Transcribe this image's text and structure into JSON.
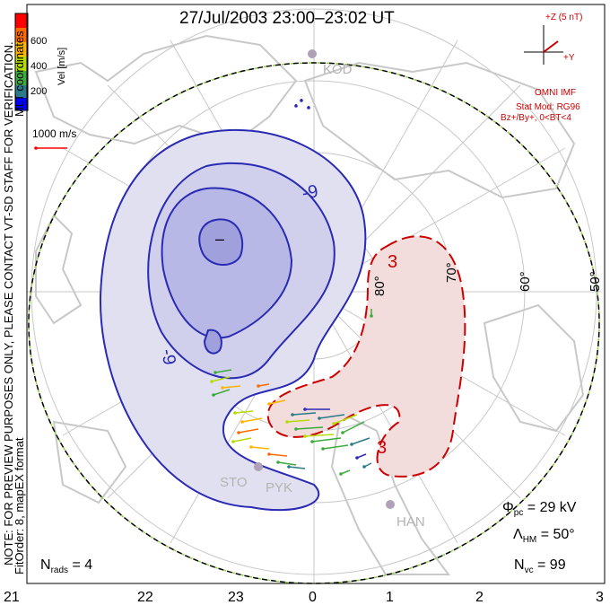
{
  "title": "27/Jul/2003 23:00–23:02 UT",
  "colorbar": {
    "label": "Vel [m/s]",
    "ticks": [
      "600",
      "400",
      "200"
    ],
    "colors": [
      "#ff0000",
      "#ff6a00",
      "#ffb400",
      "#b4dc00",
      "#3caa3c",
      "#2a7a8a",
      "#0000ff"
    ]
  },
  "vector_scale": "1000 m/s",
  "side_note_1": "MLT coordinates",
  "side_note_2": "NOTE: FOR PREVIEW PURPOSES ONLY, PLEASE CONTACT VT-SD STAFF FOR VERIFICATION.",
  "side_note_3": "FitOrder: 8,  mapEX format",
  "imf": {
    "z_label": "+Z  (5 nT)",
    "y_label": "+Y",
    "header": "OMNI IMF",
    "model_line1": "Stat Mod: RG96",
    "model_line2": "Bz+/By+,  0<BT<4"
  },
  "stations": [
    "KOD",
    "STO",
    "PYK",
    "HAN"
  ],
  "latitude_labels": [
    "80°",
    "70°",
    "60°",
    "50°"
  ],
  "contour_labels": {
    "neg_main": "-9",
    "neg_side": "-9",
    "neg_small": "–",
    "pos_top": "3",
    "pos_bottom": "3"
  },
  "stats": {
    "phi_pc": "Φpc = 29 kV",
    "phi_pc_value": "29 kV",
    "lambda_hm_value": "50°",
    "n_vc_value": "99",
    "n_rads_value": "4"
  },
  "mlt_labels": [
    "21",
    "22",
    "23",
    "0",
    "1",
    "2",
    "3"
  ],
  "colors": {
    "negative_cell": "#2a2ab4",
    "positive_cell": "#cc0000",
    "continent": "#c8c8c8",
    "grid": "#c8c8c8",
    "boundary_green": "#8cd23c"
  }
}
